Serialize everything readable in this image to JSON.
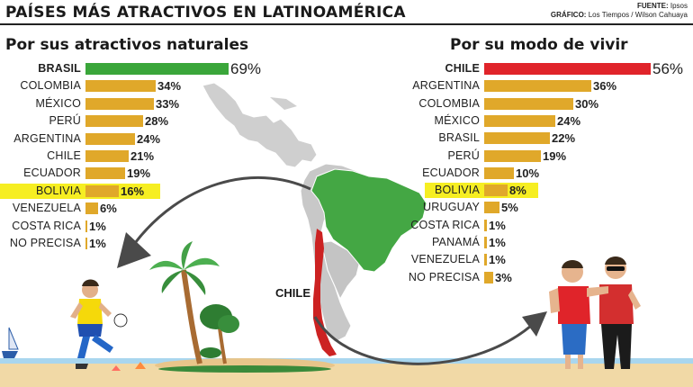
{
  "header": {
    "title": "PAÍSES MÁS ATRACTIVOS EN LATINOAMÉRICA",
    "source_label": "FUENTE:",
    "source_value": "Ipsos",
    "graphic_label": "GRÁFICO:",
    "graphic_value": "Los Tiempos / Wilson Cahuaya"
  },
  "map": {
    "highlight_label": "CHILE"
  },
  "colors": {
    "bar": "#e0a82a",
    "brasil": "#3aa63a",
    "chile": "#e0242a",
    "highlight": "#f6ee22",
    "map_land": "#c8c8c8",
    "map_brazil": "#44a744",
    "map_chile": "#cc2222"
  },
  "chart_data": [
    {
      "type": "bar",
      "orientation": "horizontal",
      "title": "Por sus atractivos naturales",
      "categories": [
        "BRASIL",
        "COLOMBIA",
        "MÉXICO",
        "PERÚ",
        "ARGENTINA",
        "CHILE",
        "ECUADOR",
        "BOLIVIA",
        "VENEZUELA",
        "COSTA RICA",
        "NO PRECISA"
      ],
      "values": [
        69,
        34,
        33,
        28,
        24,
        21,
        19,
        16,
        6,
        1,
        1
      ],
      "value_labels": [
        "69%",
        "34%",
        "33%",
        "28%",
        "24%",
        "21%",
        "19%",
        "16%",
        "6%",
        "1%",
        "1%"
      ],
      "top_color": "#3aa63a",
      "highlighted_category": "BOLIVIA"
    },
    {
      "type": "bar",
      "orientation": "horizontal",
      "title": "Por su modo de vivir",
      "categories": [
        "CHILE",
        "ARGENTINA",
        "COLOMBIA",
        "MÉXICO",
        "BRASIL",
        "PERÚ",
        "ECUADOR",
        "BOLIVIA",
        "URUGUAY",
        "COSTA RICA",
        "PANAMÁ",
        "VENEZUELA",
        "NO PRECISA"
      ],
      "values": [
        56,
        36,
        30,
        24,
        22,
        19,
        10,
        8,
        5,
        1,
        1,
        1,
        3
      ],
      "value_labels": [
        "56%",
        "36%",
        "30%",
        "24%",
        "22%",
        "19%",
        "10%",
        "8%",
        "5%",
        "1%",
        "1%",
        "1%",
        "3%"
      ],
      "top_color": "#e0242a",
      "highlighted_category": "BOLIVIA"
    }
  ]
}
